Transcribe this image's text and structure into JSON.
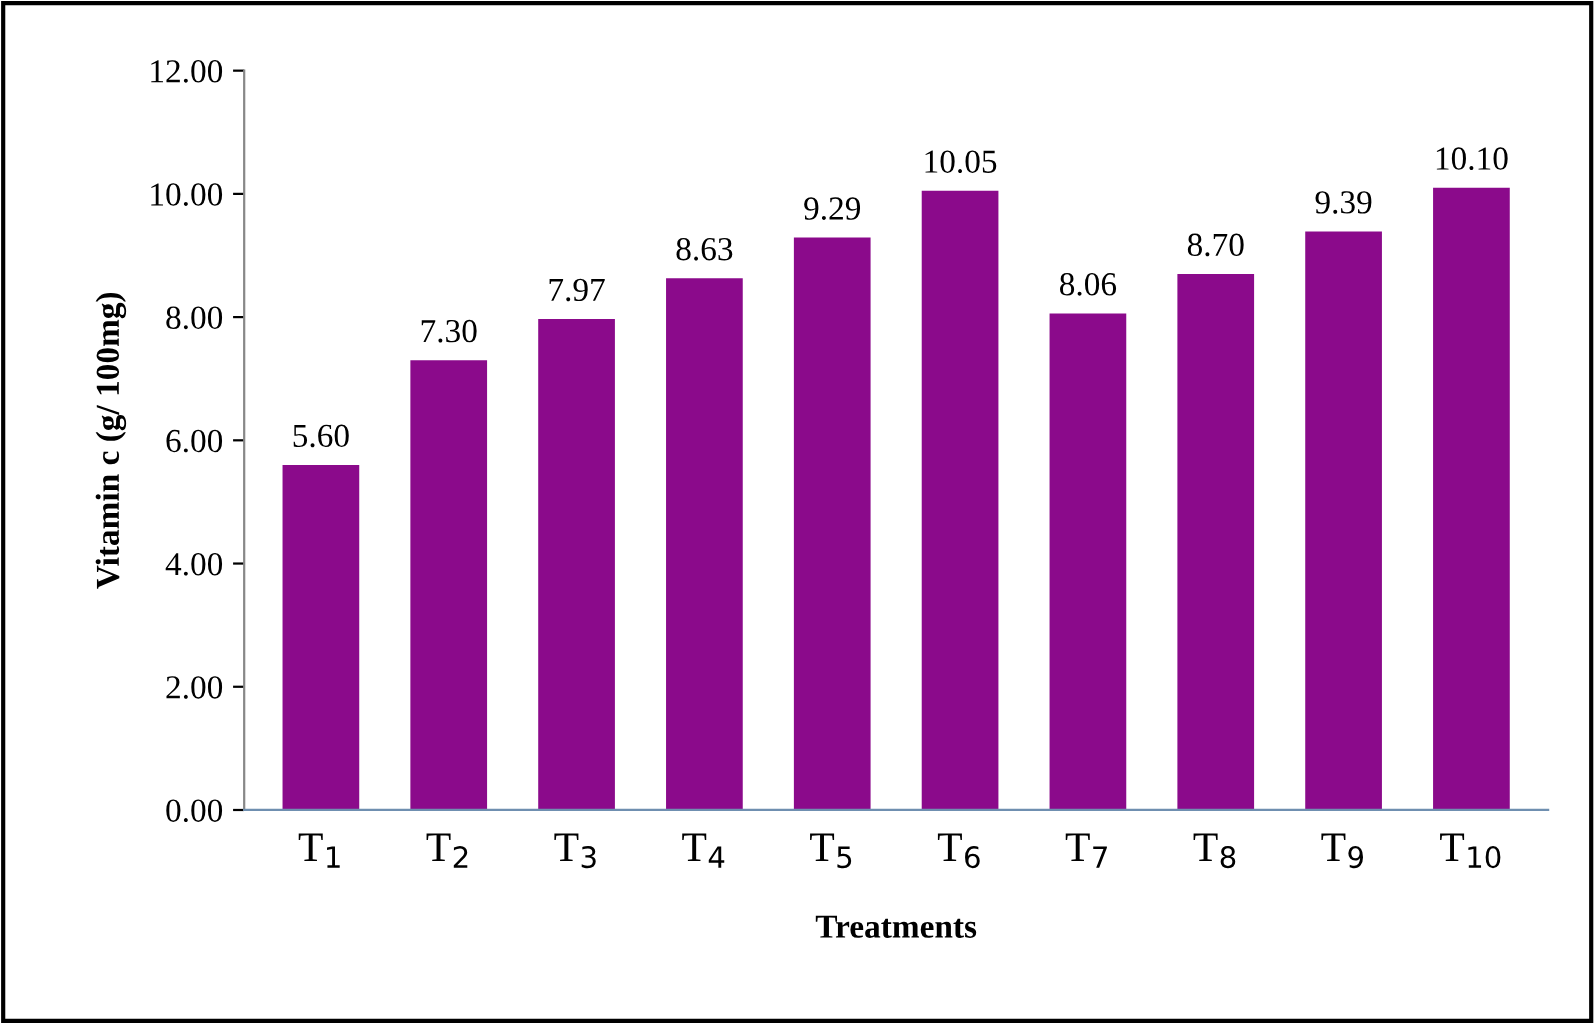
{
  "chart_data": {
    "type": "bar",
    "xlabel": "Treatments",
    "ylabel": "Vitamin c (g/ 100mg)",
    "categories": [
      "T$_{1}$",
      "T$_{2}$",
      "T$_{3}$",
      "T$_{4}$",
      "T$_{5}$",
      "T$_{6}$",
      "T$_{7}$",
      "T$_{8}$",
      "T$_{9}$",
      "T$_{10}$"
    ],
    "values": [
      5.6,
      7.3,
      7.97,
      8.63,
      9.29,
      10.05,
      8.06,
      8.7,
      9.39,
      10.1
    ],
    "value_labels": [
      "5.60",
      "7.30",
      "7.97",
      "8.63",
      "9.29",
      "10.05",
      "8.06",
      "8.70",
      "9.39",
      "10.10"
    ],
    "color": "#8b0a8b",
    "ylim": [
      0,
      12
    ],
    "yticks": [
      {
        "value": 0,
        "label": "0.00"
      },
      {
        "value": 2,
        "label": "2.00"
      },
      {
        "value": 4,
        "label": "4.00"
      },
      {
        "value": 6,
        "label": "6.00"
      },
      {
        "value": 8,
        "label": "8.00"
      },
      {
        "value": 10,
        "label": "10.00"
      },
      {
        "value": 12,
        "label": "12.00"
      }
    ],
    "grid": false,
    "legend": false
  }
}
